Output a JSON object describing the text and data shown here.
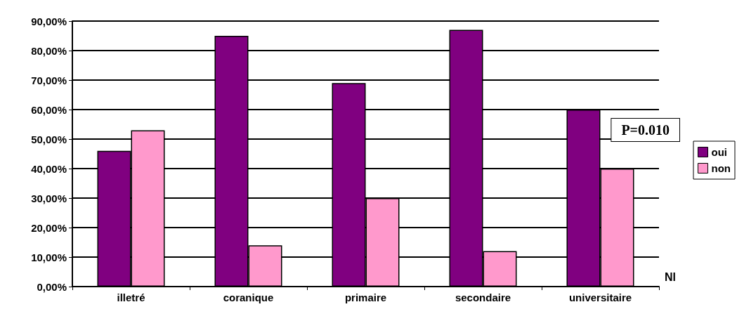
{
  "chart_data": {
    "type": "bar",
    "xlabel": "Nl",
    "categories": [
      "illetré",
      "coranique",
      "primaire",
      "secondaire",
      "universitaire"
    ],
    "series": [
      {
        "name": "oui",
        "color": "#800080",
        "values": [
          46,
          85,
          69,
          87,
          60
        ]
      },
      {
        "name": "non",
        "color": "#ff99cc",
        "values": [
          53,
          14,
          30,
          12,
          40
        ]
      }
    ],
    "ylim": [
      0,
      90
    ],
    "yticks": [
      {
        "value": 0,
        "label": "0,00%"
      },
      {
        "value": 10,
        "label": "10,00%"
      },
      {
        "value": 20,
        "label": "20,00%"
      },
      {
        "value": 30,
        "label": "30,00%"
      },
      {
        "value": 40,
        "label": "40,00%"
      },
      {
        "value": 50,
        "label": "50,00%"
      },
      {
        "value": 60,
        "label": "60,00%"
      },
      {
        "value": 70,
        "label": "70,00%"
      },
      {
        "value": 80,
        "label": "80,00%"
      },
      {
        "value": 90,
        "label": "90,00%"
      }
    ],
    "grid": "y",
    "legend": "right",
    "annotations": [
      "P=0.010"
    ]
  }
}
